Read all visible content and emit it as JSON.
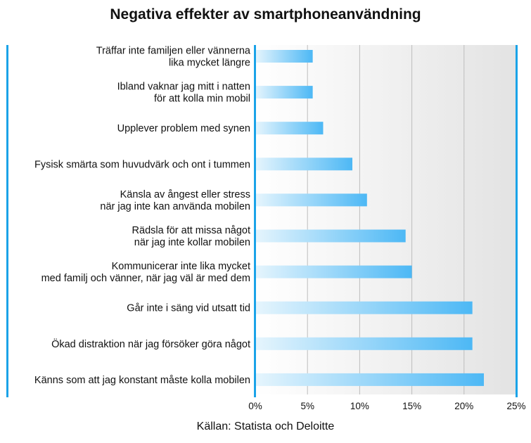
{
  "chart_data": {
    "type": "bar",
    "orientation": "horizontal",
    "title": "Negativa effekter av smartphoneanvändning",
    "source": "Källan: Statista och Deloitte",
    "categories": [
      [
        "Träffar inte familjen eller vännerna",
        "lika mycket längre"
      ],
      [
        "Ibland vaknar jag mitt i natten",
        "för att kolla min mobil"
      ],
      [
        "Upplever problem med synen"
      ],
      [
        "Fysisk smärta som huvudvärk och ont i tummen"
      ],
      [
        "Känsla av ångest eller stress",
        "när jag inte kan använda mobilen"
      ],
      [
        "Rädsla för att missa något",
        "när jag inte kollar mobilen"
      ],
      [
        "Kommunicerar inte lika mycket",
        "med familj och vänner, när jag väl är med dem"
      ],
      [
        "Går inte i säng vid utsatt tid"
      ],
      [
        "Ökad distraktion när jag försöker göra något"
      ],
      [
        "Känns som att jag konstant måste kolla mobilen"
      ]
    ],
    "values": [
      5.5,
      5.5,
      6.5,
      9.3,
      10.7,
      14.4,
      15.0,
      20.8,
      20.8,
      21.9
    ],
    "unit": "%",
    "xlim": [
      0,
      25
    ],
    "xticks": [
      0,
      5,
      10,
      15,
      20,
      25
    ],
    "xtick_labels": [
      "0%",
      "5%",
      "10%",
      "15%",
      "20%",
      "25%"
    ],
    "grid": true,
    "colors": {
      "bar_start": "#e6f5fd",
      "bar_end": "#4db8f5",
      "accent": "#1aa3e8",
      "plot_bg_start": "#ffffff",
      "plot_bg_end": "#e3e3e3",
      "grid": "#bdbdbd"
    }
  }
}
